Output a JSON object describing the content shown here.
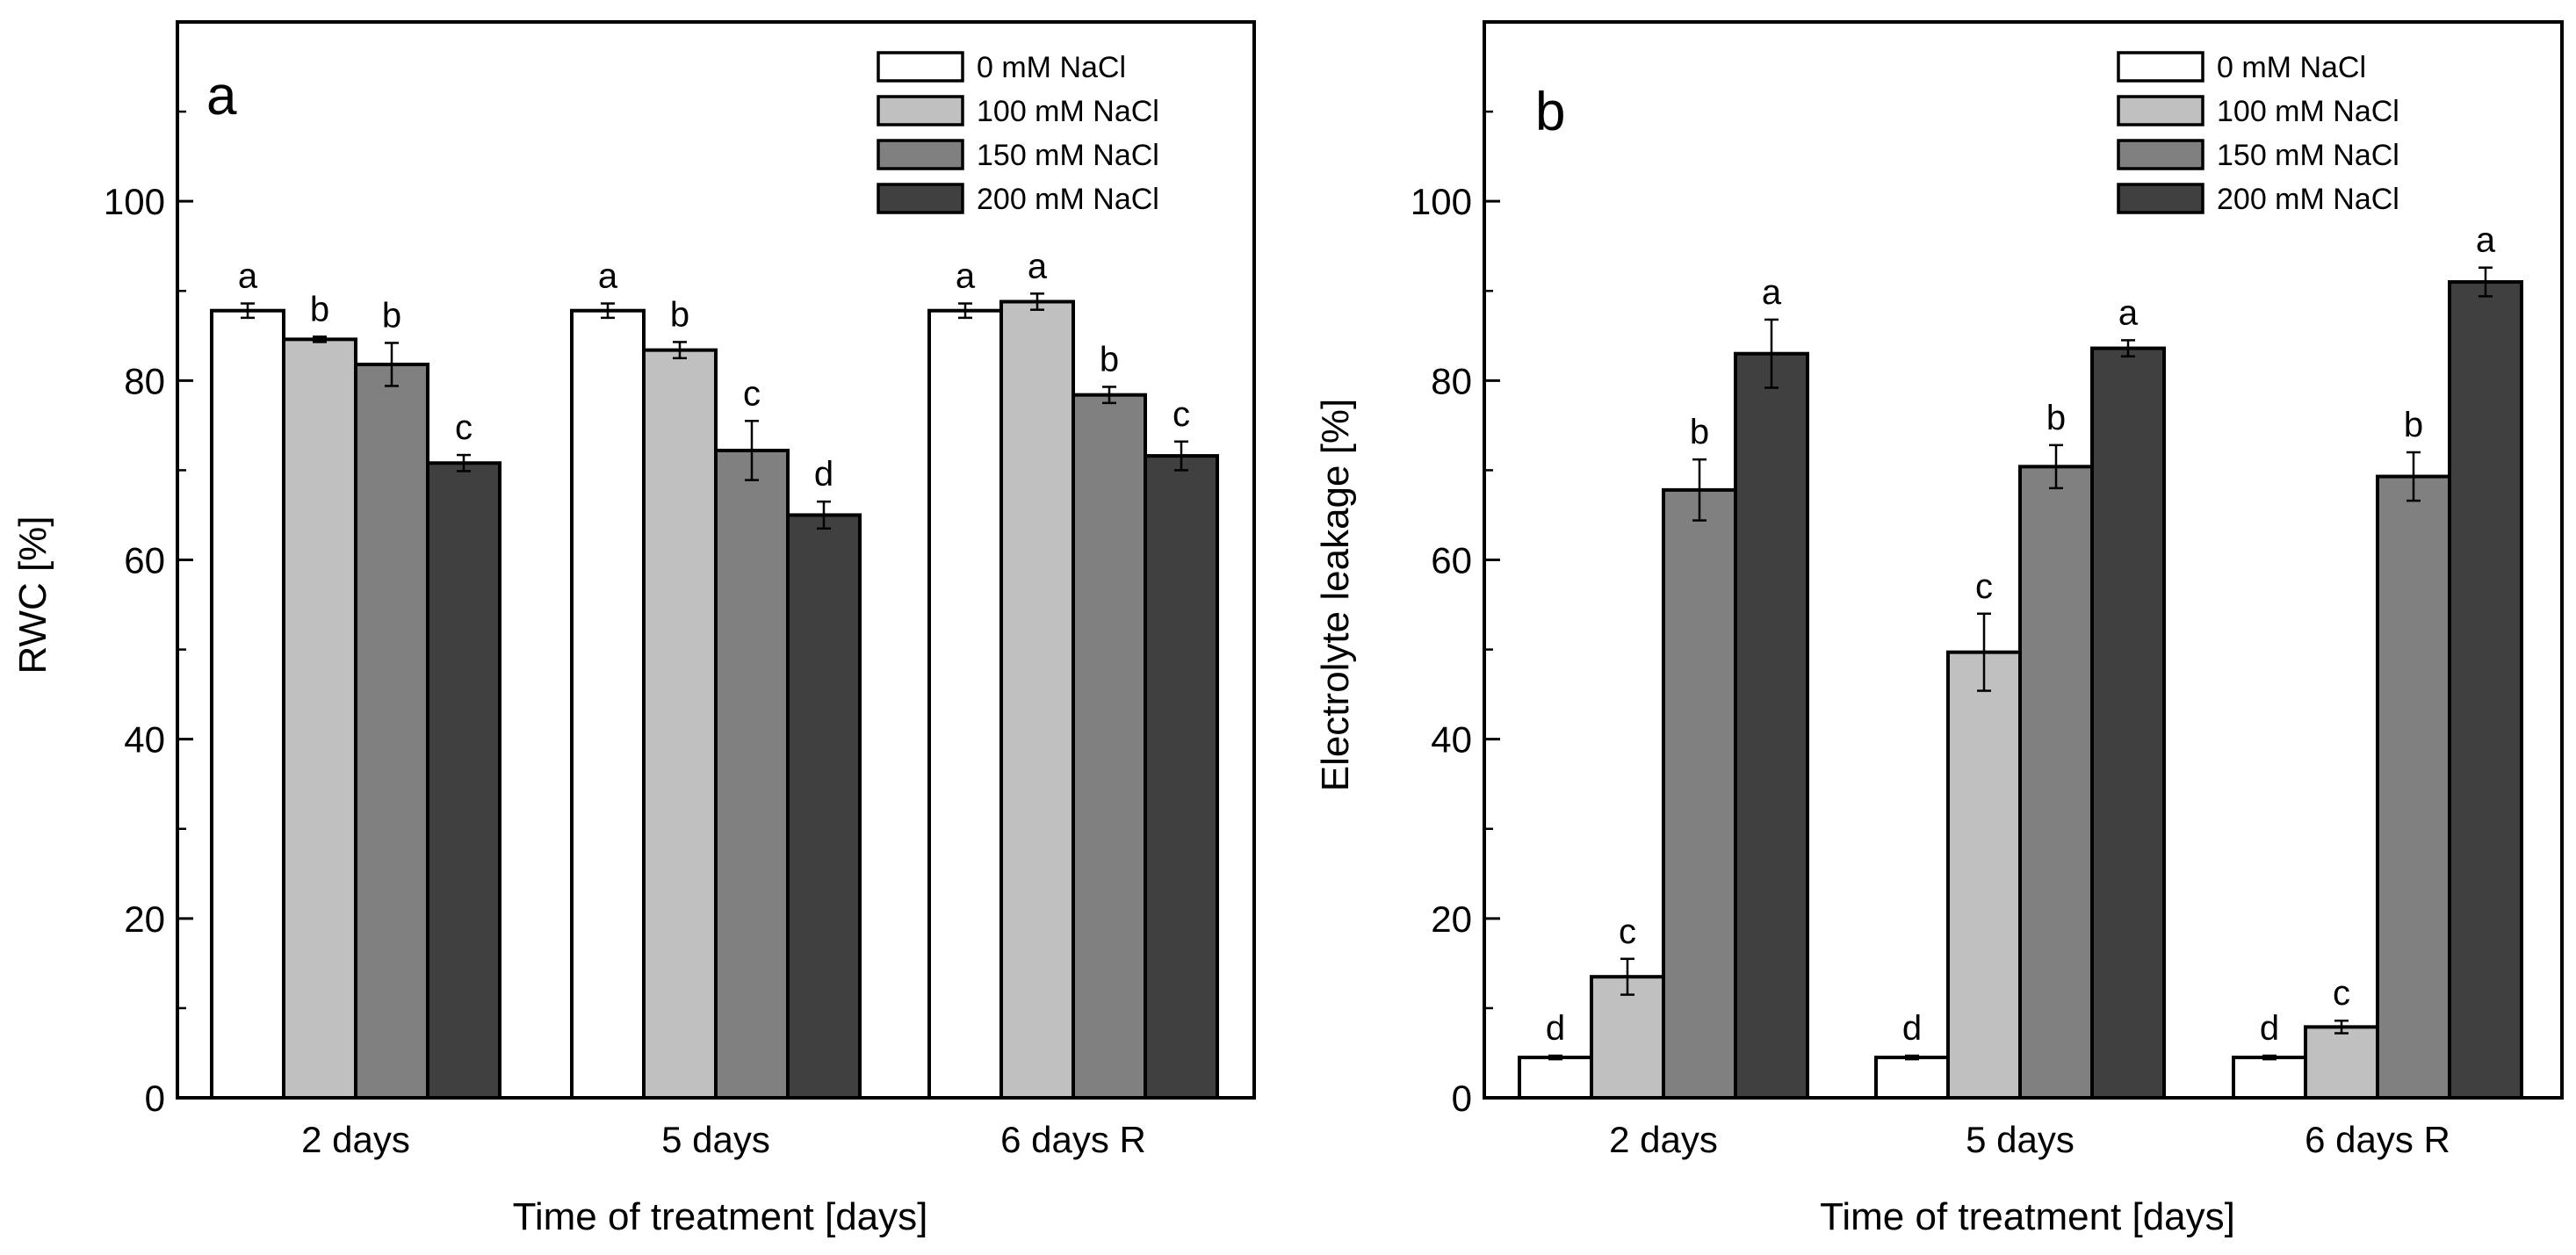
{
  "figure": {
    "colors": {
      "0 mM NaCl": "#ffffff",
      "100 mM NaCl": "#c0c0c0",
      "150 mM NaCl": "#808080",
      "200 mM NaCl": "#404040"
    }
  },
  "chart_data": [
    {
      "type": "bar",
      "panel_label": "a",
      "title": "",
      "xlabel": "Time of treatment [days]",
      "ylabel": "RWC [%]",
      "categories": [
        "2 days",
        "5 days",
        "6 days R"
      ],
      "ylim": [
        0,
        120
      ],
      "yticks": [
        0,
        20,
        40,
        60,
        80,
        100
      ],
      "grid": false,
      "legend_position": "top-right",
      "series": [
        {
          "name": "0 mM NaCl",
          "values": [
            87.8,
            87.8,
            87.8
          ],
          "errors": [
            0.8,
            0.8,
            0.8
          ],
          "letters": [
            "a",
            "a",
            "a"
          ]
        },
        {
          "name": "100 mM NaCl",
          "values": [
            84.6,
            83.4,
            88.8
          ],
          "errors": [
            0.3,
            0.9,
            0.9
          ],
          "letters": [
            "b",
            "b",
            "a"
          ]
        },
        {
          "name": "150 mM NaCl",
          "values": [
            81.8,
            72.2,
            78.4
          ],
          "errors": [
            2.4,
            3.3,
            0.9
          ],
          "letters": [
            "b",
            "c",
            "b"
          ]
        },
        {
          "name": "200 mM NaCl",
          "values": [
            70.8,
            65.0,
            71.6
          ],
          "errors": [
            0.9,
            1.5,
            1.6
          ],
          "letters": [
            "c",
            "d",
            "c"
          ]
        }
      ]
    },
    {
      "type": "bar",
      "panel_label": "b",
      "title": "",
      "xlabel": "Time of treatment [days]",
      "ylabel": "Electrolyte leakage [%]",
      "categories": [
        "2 days",
        "5 days",
        "6 days R"
      ],
      "ylim": [
        0,
        120
      ],
      "yticks": [
        0,
        20,
        40,
        60,
        80,
        100
      ],
      "grid": false,
      "legend_position": "top-right",
      "series": [
        {
          "name": "0 mM NaCl",
          "values": [
            4.5,
            4.5,
            4.5
          ],
          "errors": [
            0.2,
            0.2,
            0.2
          ],
          "letters": [
            "d",
            "d",
            "d"
          ]
        },
        {
          "name": "100 mM NaCl",
          "values": [
            13.5,
            49.7,
            7.9
          ],
          "errors": [
            2.0,
            4.3,
            0.7
          ],
          "letters": [
            "c",
            "c",
            "c"
          ]
        },
        {
          "name": "150 mM NaCl",
          "values": [
            67.8,
            70.4,
            69.3
          ],
          "errors": [
            3.4,
            2.4,
            2.7
          ],
          "letters": [
            "b",
            "b",
            "b"
          ]
        },
        {
          "name": "200 mM NaCl",
          "values": [
            83.0,
            83.6,
            91.0
          ],
          "errors": [
            3.8,
            0.9,
            1.6
          ],
          "letters": [
            "a",
            "a",
            "a"
          ]
        }
      ]
    }
  ]
}
